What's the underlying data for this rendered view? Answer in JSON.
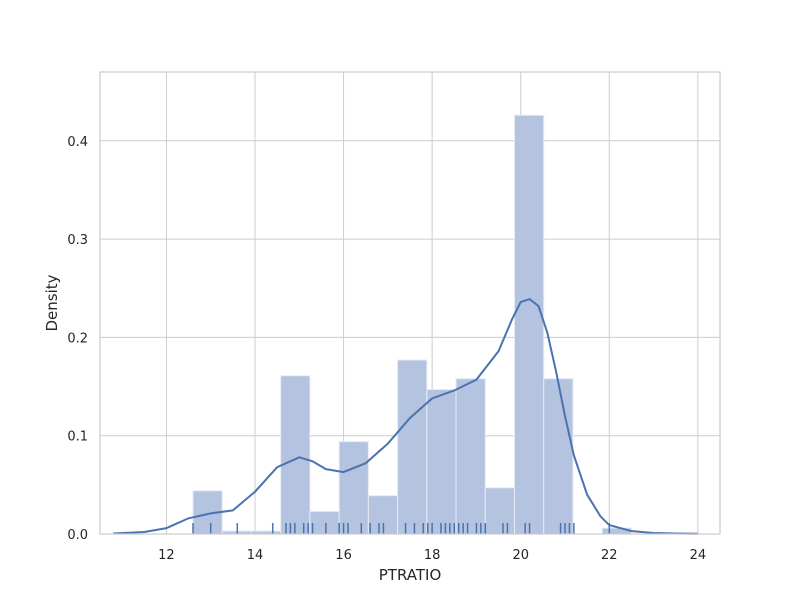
{
  "chart_data": {
    "type": "bar",
    "xlabel": "PTRATIO",
    "ylabel": "Density",
    "xlim": [
      10.5,
      24.5
    ],
    "ylim": [
      0,
      0.47
    ],
    "grid": true,
    "x_ticks": [
      12,
      14,
      16,
      18,
      20,
      22,
      24
    ],
    "y_ticks": [
      0.0,
      0.1,
      0.2,
      0.3,
      0.4
    ],
    "y_tick_labels": [
      "0.0",
      "0.1",
      "0.2",
      "0.3",
      "0.4"
    ],
    "colors": {
      "bars": "#b3c3e0",
      "bar_edge": "#e6ebf5",
      "kde": "#4c72b0",
      "rug": "#4c72b0",
      "grid": "#cccccc",
      "frame": "#cccccc"
    },
    "histogram": {
      "bins": [
        {
          "x0": 12.6,
          "x1": 13.26,
          "density": 0.044
        },
        {
          "x0": 13.26,
          "x1": 13.92,
          "density": 0.003
        },
        {
          "x0": 13.92,
          "x1": 14.58,
          "density": 0.003
        },
        {
          "x0": 14.58,
          "x1": 15.24,
          "density": 0.161
        },
        {
          "x0": 15.24,
          "x1": 15.9,
          "density": 0.023
        },
        {
          "x0": 15.9,
          "x1": 16.56,
          "density": 0.094
        },
        {
          "x0": 16.56,
          "x1": 17.22,
          "density": 0.039
        },
        {
          "x0": 17.22,
          "x1": 17.88,
          "density": 0.177
        },
        {
          "x0": 17.88,
          "x1": 18.54,
          "density": 0.147
        },
        {
          "x0": 18.54,
          "x1": 19.2,
          "density": 0.158
        },
        {
          "x0": 19.2,
          "x1": 19.86,
          "density": 0.047
        },
        {
          "x0": 19.86,
          "x1": 20.52,
          "density": 0.426
        },
        {
          "x0": 20.52,
          "x1": 21.18,
          "density": 0.158
        },
        {
          "x0": 21.18,
          "x1": 21.84,
          "density": 0.0
        },
        {
          "x0": 21.84,
          "x1": 22.5,
          "density": 0.006
        }
      ]
    },
    "kde": {
      "x": [
        10.8,
        11.5,
        12.0,
        12.5,
        13.0,
        13.5,
        14.0,
        14.5,
        15.0,
        15.3,
        15.6,
        16.0,
        16.5,
        17.0,
        17.5,
        18.0,
        18.5,
        19.0,
        19.5,
        19.8,
        20.0,
        20.2,
        20.4,
        20.6,
        20.8,
        21.0,
        21.2,
        21.5,
        21.8,
        22.0,
        22.5,
        23.0,
        23.5,
        24.0
      ],
      "y": [
        0.0005,
        0.002,
        0.006,
        0.016,
        0.021,
        0.024,
        0.043,
        0.068,
        0.078,
        0.074,
        0.066,
        0.063,
        0.072,
        0.092,
        0.118,
        0.138,
        0.146,
        0.157,
        0.186,
        0.218,
        0.236,
        0.239,
        0.232,
        0.205,
        0.165,
        0.12,
        0.08,
        0.04,
        0.018,
        0.009,
        0.003,
        0.001,
        0.0005,
        0.0002
      ]
    },
    "rug": [
      12.6,
      13.0,
      13.6,
      14.4,
      14.7,
      14.8,
      14.9,
      15.1,
      15.2,
      15.3,
      15.6,
      15.9,
      16.0,
      16.1,
      16.4,
      16.6,
      16.8,
      16.9,
      17.4,
      17.6,
      17.8,
      17.9,
      18.0,
      18.2,
      18.3,
      18.4,
      18.5,
      18.6,
      18.7,
      18.8,
      19.0,
      19.1,
      19.2,
      19.6,
      19.7,
      20.1,
      20.2,
      20.9,
      21.0,
      21.1,
      21.2,
      22.0
    ]
  }
}
